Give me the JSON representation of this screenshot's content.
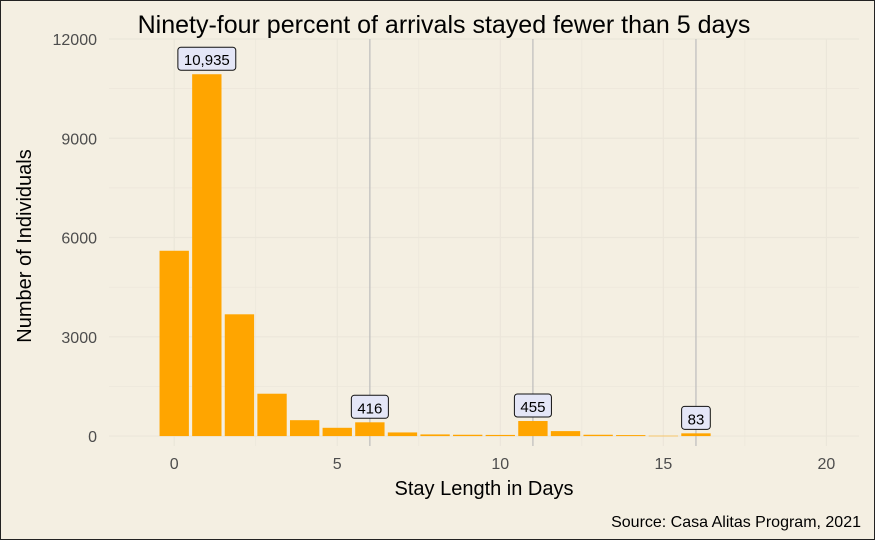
{
  "chart_data": {
    "type": "bar",
    "title": "Ninety-four percent of arrivals stayed fewer than 5 days",
    "xlabel": "Stay Length in Days",
    "ylabel": "Number of Individuals",
    "caption": "Source: Casa Alitas Program, 2021",
    "x": [
      0,
      1,
      2,
      3,
      4,
      5,
      6,
      7,
      8,
      9,
      10,
      11,
      12,
      13,
      14,
      15,
      16
    ],
    "values": [
      5600,
      10935,
      3680,
      1280,
      480,
      250,
      416,
      110,
      50,
      40,
      35,
      455,
      150,
      40,
      30,
      10,
      83
    ],
    "xlim": [
      -2,
      21
    ],
    "ylim": [
      -300,
      12000
    ],
    "xticks": [
      0,
      5,
      10,
      15,
      20
    ],
    "xtick_labels": [
      "0",
      "5",
      "10",
      "15",
      "20"
    ],
    "yticks": [
      0,
      3000,
      6000,
      9000,
      12000
    ],
    "ytick_labels": [
      "0",
      "3000",
      "6000",
      "9000",
      "12000"
    ],
    "reference_lines_x": [
      6,
      11,
      16
    ],
    "annotations": [
      {
        "x": 1,
        "value": 10935,
        "text": "10,935"
      },
      {
        "x": 6,
        "value": 416,
        "text": "416"
      },
      {
        "x": 11,
        "value": 455,
        "text": "455"
      },
      {
        "x": 16,
        "value": 83,
        "text": "83"
      }
    ],
    "bar_color": "#ffa500",
    "label_fill": "#e4e6f7",
    "background": "#f4efe2",
    "grid": true,
    "legend": "none"
  }
}
